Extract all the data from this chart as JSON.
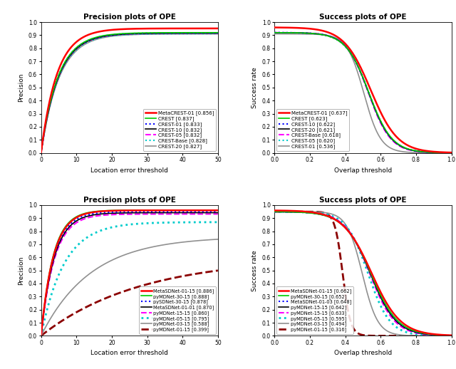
{
  "fig_width": 6.4,
  "fig_height": 5.18,
  "dpi": 100,
  "top_left": {
    "title": "Precision plots of OPE",
    "xlabel": "Location error threshold",
    "ylabel": "Precision",
    "xlim": [
      0,
      50
    ],
    "ylim": [
      0,
      1
    ],
    "lines": [
      {
        "label": "MetaCREST-01 [0.856]",
        "color": "#FF0000",
        "linestyle": "-",
        "linewidth": 1.8,
        "zorder": 10,
        "sat": 0.952,
        "tau": 4.5
      },
      {
        "label": "CREST [0.837]",
        "color": "#00CC00",
        "linestyle": "-",
        "linewidth": 1.2,
        "zorder": 9,
        "sat": 0.92,
        "tau": 4.8
      },
      {
        "label": "CREST-01 [0.833]",
        "color": "#0000FF",
        "linestyle": ":",
        "linewidth": 1.5,
        "zorder": 8,
        "sat": 0.917,
        "tau": 4.8
      },
      {
        "label": "CREST-10 [0.832]",
        "color": "#000000",
        "linestyle": "-",
        "linewidth": 1.2,
        "zorder": 7,
        "sat": 0.916,
        "tau": 4.9
      },
      {
        "label": "CREST-05 [0.832]",
        "color": "#FF00FF",
        "linestyle": "--",
        "linewidth": 1.5,
        "zorder": 6,
        "sat": 0.916,
        "tau": 4.9
      },
      {
        "label": "CREST-Base [0.828]",
        "color": "#00CCCC",
        "linestyle": ":",
        "linewidth": 1.5,
        "zorder": 5,
        "sat": 0.912,
        "tau": 5.0
      },
      {
        "label": "CREST-20 [0.827]",
        "color": "#909090",
        "linestyle": "-",
        "linewidth": 1.2,
        "zorder": 4,
        "sat": 0.91,
        "tau": 5.1
      }
    ],
    "legend_loc": "lower right"
  },
  "top_right": {
    "title": "Success plots of OPE",
    "xlabel": "Overlap threshold",
    "ylabel": "Success rate",
    "xlim": [
      0,
      1
    ],
    "ylim": [
      0,
      1
    ],
    "lines": [
      {
        "label": "MetaCREST-01 [0.637]",
        "color": "#FF0000",
        "linestyle": "-",
        "linewidth": 1.8,
        "zorder": 10,
        "y0": 0.96,
        "k": 2.2
      },
      {
        "label": "CREST [0.623]",
        "color": "#00CC00",
        "linestyle": "-",
        "linewidth": 1.2,
        "zorder": 9,
        "y0": 0.92,
        "k": 2.55
      },
      {
        "label": "CREST-10 [0.622]",
        "color": "#0000FF",
        "linestyle": ":",
        "linewidth": 1.5,
        "zorder": 8,
        "y0": 0.92,
        "k": 2.58
      },
      {
        "label": "CREST-20 [0.621]",
        "color": "#000000",
        "linestyle": "-",
        "linewidth": 1.2,
        "zorder": 7,
        "y0": 0.92,
        "k": 2.6
      },
      {
        "label": "CREST-Base [0.618]",
        "color": "#FF00FF",
        "linestyle": "--",
        "linewidth": 1.5,
        "zorder": 6,
        "y0": 0.92,
        "k": 2.65
      },
      {
        "label": "CREST-05 [0.620]",
        "color": "#00CCCC",
        "linestyle": ":",
        "linewidth": 1.5,
        "zorder": 5,
        "y0": 0.92,
        "k": 2.62
      },
      {
        "label": "CREST-01 [0.536]",
        "color": "#909090",
        "linestyle": "-",
        "linewidth": 1.2,
        "zorder": 4,
        "y0": 0.91,
        "k": 3.5
      }
    ],
    "legend_loc": "lower left"
  },
  "bottom_left": {
    "title": "Precision plots of OPE",
    "xlabel": "Location error threshold",
    "ylabel": "Precision",
    "xlim": [
      0,
      50
    ],
    "ylim": [
      0,
      1
    ],
    "lines": [
      {
        "label": "MetaSDNet-01-15 [0.886]",
        "color": "#FF0000",
        "linestyle": "-",
        "linewidth": 1.8,
        "zorder": 10,
        "sat": 0.96,
        "tau": 3.5
      },
      {
        "label": "pyMDNet-30-15 [0.888]",
        "color": "#00CC00",
        "linestyle": "-",
        "linewidth": 1.2,
        "zorder": 9,
        "sat": 0.962,
        "tau": 3.4
      },
      {
        "label": "pySDNet-30-15 [0.878]",
        "color": "#0000FF",
        "linestyle": ":",
        "linewidth": 1.5,
        "zorder": 8,
        "sat": 0.95,
        "tau": 3.6
      },
      {
        "label": "MetaSDNet-01-01 [0.870]",
        "color": "#000000",
        "linestyle": "-",
        "linewidth": 1.2,
        "zorder": 7,
        "sat": 0.942,
        "tau": 3.7
      },
      {
        "label": "pyMDNet-15-15 [0.860]",
        "color": "#FF00FF",
        "linestyle": "--",
        "linewidth": 1.5,
        "zorder": 6,
        "sat": 0.932,
        "tau": 3.8
      },
      {
        "label": "pyMDNet-05-15 [0.795]",
        "color": "#00CCCC",
        "linestyle": ":",
        "linewidth": 2.0,
        "zorder": 5,
        "sat": 0.87,
        "tau": 6.5
      },
      {
        "label": "pyMDNet-03-15 [0.588]",
        "color": "#909090",
        "linestyle": "-",
        "linewidth": 1.2,
        "zorder": 3,
        "sat": 0.76,
        "tau": 14.0
      },
      {
        "label": "pyMDNet-01-15 [0.399]",
        "color": "#8B0000",
        "linestyle": "--",
        "linewidth": 2.0,
        "zorder": 2,
        "sat": 0.6,
        "tau": 28.0
      }
    ],
    "legend_loc": "lower right"
  },
  "bottom_right": {
    "title": "Success plots of OPE",
    "xlabel": "Overlap threshold",
    "ylabel": "Success rate",
    "xlim": [
      0,
      1
    ],
    "ylim": [
      0,
      1
    ],
    "lines": [
      {
        "label": "MetaSDNet-01-15 [0.662]",
        "color": "#FF0000",
        "linestyle": "-",
        "linewidth": 1.8,
        "zorder": 10,
        "y0": 0.96,
        "k": 2.05
      },
      {
        "label": "pyMDNet-30-15 [0.652]",
        "color": "#00CC00",
        "linestyle": "-",
        "linewidth": 1.2,
        "zorder": 9,
        "y0": 0.95,
        "k": 2.18
      },
      {
        "label": "MetaSDNet-01-03 [0.648]",
        "color": "#0000FF",
        "linestyle": ":",
        "linewidth": 1.5,
        "zorder": 8,
        "y0": 0.95,
        "k": 2.22
      },
      {
        "label": "pyMDNet-15-15 [0.642]",
        "color": "#000000",
        "linestyle": "-",
        "linewidth": 1.2,
        "zorder": 7,
        "y0": 0.95,
        "k": 2.28
      },
      {
        "label": "pyMDNet-15-15 [0.633]",
        "color": "#FF00FF",
        "linestyle": "--",
        "linewidth": 1.5,
        "zorder": 6,
        "y0": 0.95,
        "k": 2.38
      },
      {
        "label": "pyMDNet-05-15 [0.595]",
        "color": "#00CCCC",
        "linestyle": ":",
        "linewidth": 2.0,
        "zorder": 5,
        "y0": 0.95,
        "k": 2.7
      },
      {
        "label": "pyMDNet-03-15 [0.494]",
        "color": "#909090",
        "linestyle": "-",
        "linewidth": 1.2,
        "zorder": 3,
        "y0": 0.95,
        "k": 3.8
      },
      {
        "label": "pyMDNet-01-15 [0.316]",
        "color": "#8B0000",
        "linestyle": "--",
        "linewidth": 2.0,
        "zorder": 2,
        "y0": 0.95,
        "k": 7.5
      }
    ],
    "legend_loc": "lower left"
  }
}
